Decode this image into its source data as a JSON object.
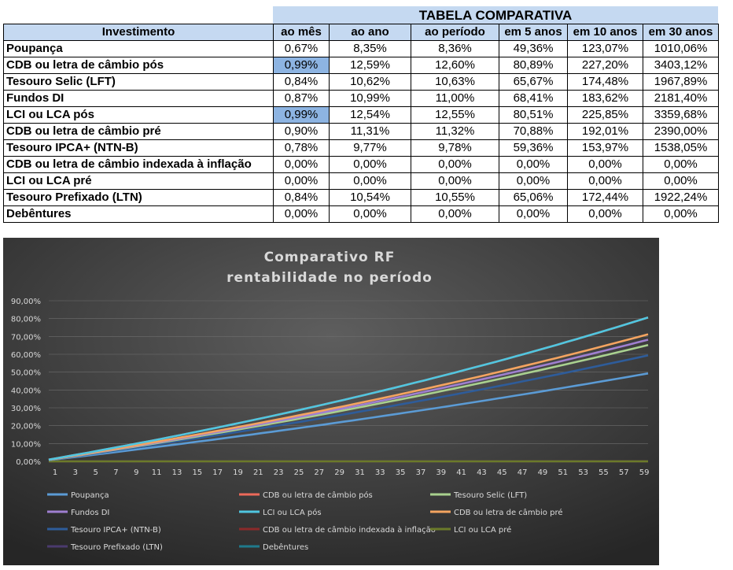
{
  "table": {
    "title": "TABELA COMPARATIVA",
    "headers": [
      "Investimento",
      "ao mês",
      "ao ano",
      "ao período",
      "em 5 anos",
      "em 10 anos",
      "em 30 anos"
    ],
    "rows": [
      {
        "name": "Poupança",
        "cells": [
          "0,67%",
          "8,35%",
          "8,36%",
          "49,36%",
          "123,07%",
          "1010,06%"
        ]
      },
      {
        "name": "CDB ou letra de câmbio pós",
        "cells": [
          "0,99%",
          "12,59%",
          "12,60%",
          "80,89%",
          "227,20%",
          "3403,12%"
        ],
        "highlight": true
      },
      {
        "name": "Tesouro Selic (LFT)",
        "cells": [
          "0,84%",
          "10,62%",
          "10,63%",
          "65,67%",
          "174,48%",
          "1967,89%"
        ]
      },
      {
        "name": "Fundos DI",
        "cells": [
          "0,87%",
          "10,99%",
          "11,00%",
          "68,41%",
          "183,62%",
          "2181,40%"
        ]
      },
      {
        "name": "LCI ou LCA pós",
        "cells": [
          "0,99%",
          "12,54%",
          "12,55%",
          "80,51%",
          "225,85%",
          "3359,68%"
        ],
        "highlight": true
      },
      {
        "name": "CDB ou letra de câmbio pré",
        "cells": [
          "0,90%",
          "11,31%",
          "11,32%",
          "70,88%",
          "192,01%",
          "2390,00%"
        ]
      },
      {
        "name": "Tesouro IPCA+ (NTN-B)",
        "cells": [
          "0,78%",
          "9,77%",
          "9,78%",
          "59,36%",
          "153,97%",
          "1538,05%"
        ]
      },
      {
        "name": "CDB ou letra de câmbio indexada à inflação",
        "cells": [
          "0,00%",
          "0,00%",
          "0,00%",
          "0,00%",
          "0,00%",
          "0,00%"
        ]
      },
      {
        "name": "LCI ou LCA pré",
        "cells": [
          "0,00%",
          "0,00%",
          "0,00%",
          "0,00%",
          "0,00%",
          "0,00%"
        ]
      },
      {
        "name": "Tesouro Prefixado (LTN)",
        "cells": [
          "0,84%",
          "10,54%",
          "10,55%",
          "65,06%",
          "172,44%",
          "1922,24%"
        ]
      },
      {
        "name": "Debêntures",
        "cells": [
          "0,00%",
          "0,00%",
          "0,00%",
          "0,00%",
          "0,00%",
          "0,00%"
        ]
      }
    ]
  },
  "chart_data": {
    "type": "line",
    "title": "Comparativo RF",
    "subtitle": "rentabilidade no período",
    "x_ticks": [
      1,
      3,
      5,
      7,
      9,
      11,
      13,
      15,
      17,
      19,
      21,
      23,
      25,
      27,
      29,
      31,
      33,
      35,
      37,
      39,
      41,
      43,
      45,
      47,
      49,
      51,
      53,
      55,
      57,
      59
    ],
    "x_range": [
      1,
      60
    ],
    "y_ticks": [
      "0,00%",
      "10,00%",
      "20,00%",
      "30,00%",
      "40,00%",
      "50,00%",
      "60,00%",
      "70,00%",
      "80,00%",
      "90,00%"
    ],
    "ylim": [
      0,
      90
    ],
    "legend_position": "bottom",
    "series": [
      {
        "name": "Poupança",
        "monthly_rate": 0.67,
        "value_at_60": 49.36,
        "color": "#5b9bd5"
      },
      {
        "name": "CDB ou letra de câmbio pós",
        "monthly_rate": 0.99,
        "value_at_60": 80.89,
        "color": "#ed6a5a"
      },
      {
        "name": "Tesouro Selic (LFT)",
        "monthly_rate": 0.84,
        "value_at_60": 65.67,
        "color": "#a9d18e"
      },
      {
        "name": "Fundos DI",
        "monthly_rate": 0.87,
        "value_at_60": 68.41,
        "color": "#9f7fd0"
      },
      {
        "name": "LCI ou LCA pós",
        "monthly_rate": 0.99,
        "value_at_60": 80.51,
        "color": "#4fc6e0"
      },
      {
        "name": "CDB ou letra de câmbio pré",
        "monthly_rate": 0.9,
        "value_at_60": 70.88,
        "color": "#f4a460"
      },
      {
        "name": "Tesouro IPCA+ (NTN-B)",
        "monthly_rate": 0.78,
        "value_at_60": 59.36,
        "color": "#2e5c9a"
      },
      {
        "name": "CDB ou letra de câmbio indexada à inflação",
        "monthly_rate": 0.0,
        "value_at_60": 0.0,
        "color": "#8b2a2a"
      },
      {
        "name": "LCI ou LCA pré",
        "monthly_rate": 0.0,
        "value_at_60": 0.0,
        "color": "#6b7a2a"
      },
      {
        "name": "Tesouro Prefixado (LTN)",
        "monthly_rate": 0.84,
        "value_at_60": 65.06,
        "color": "#4a3a6e"
      },
      {
        "name": "Debêntures",
        "monthly_rate": 0.0,
        "value_at_60": 0.0,
        "color": "#1f7a8c"
      }
    ],
    "colors": {
      "background_top": "#5a5a5a",
      "background_bottom": "#2b2b2b",
      "text": "#d9d9d9",
      "grid": "#6e6e6e"
    }
  }
}
